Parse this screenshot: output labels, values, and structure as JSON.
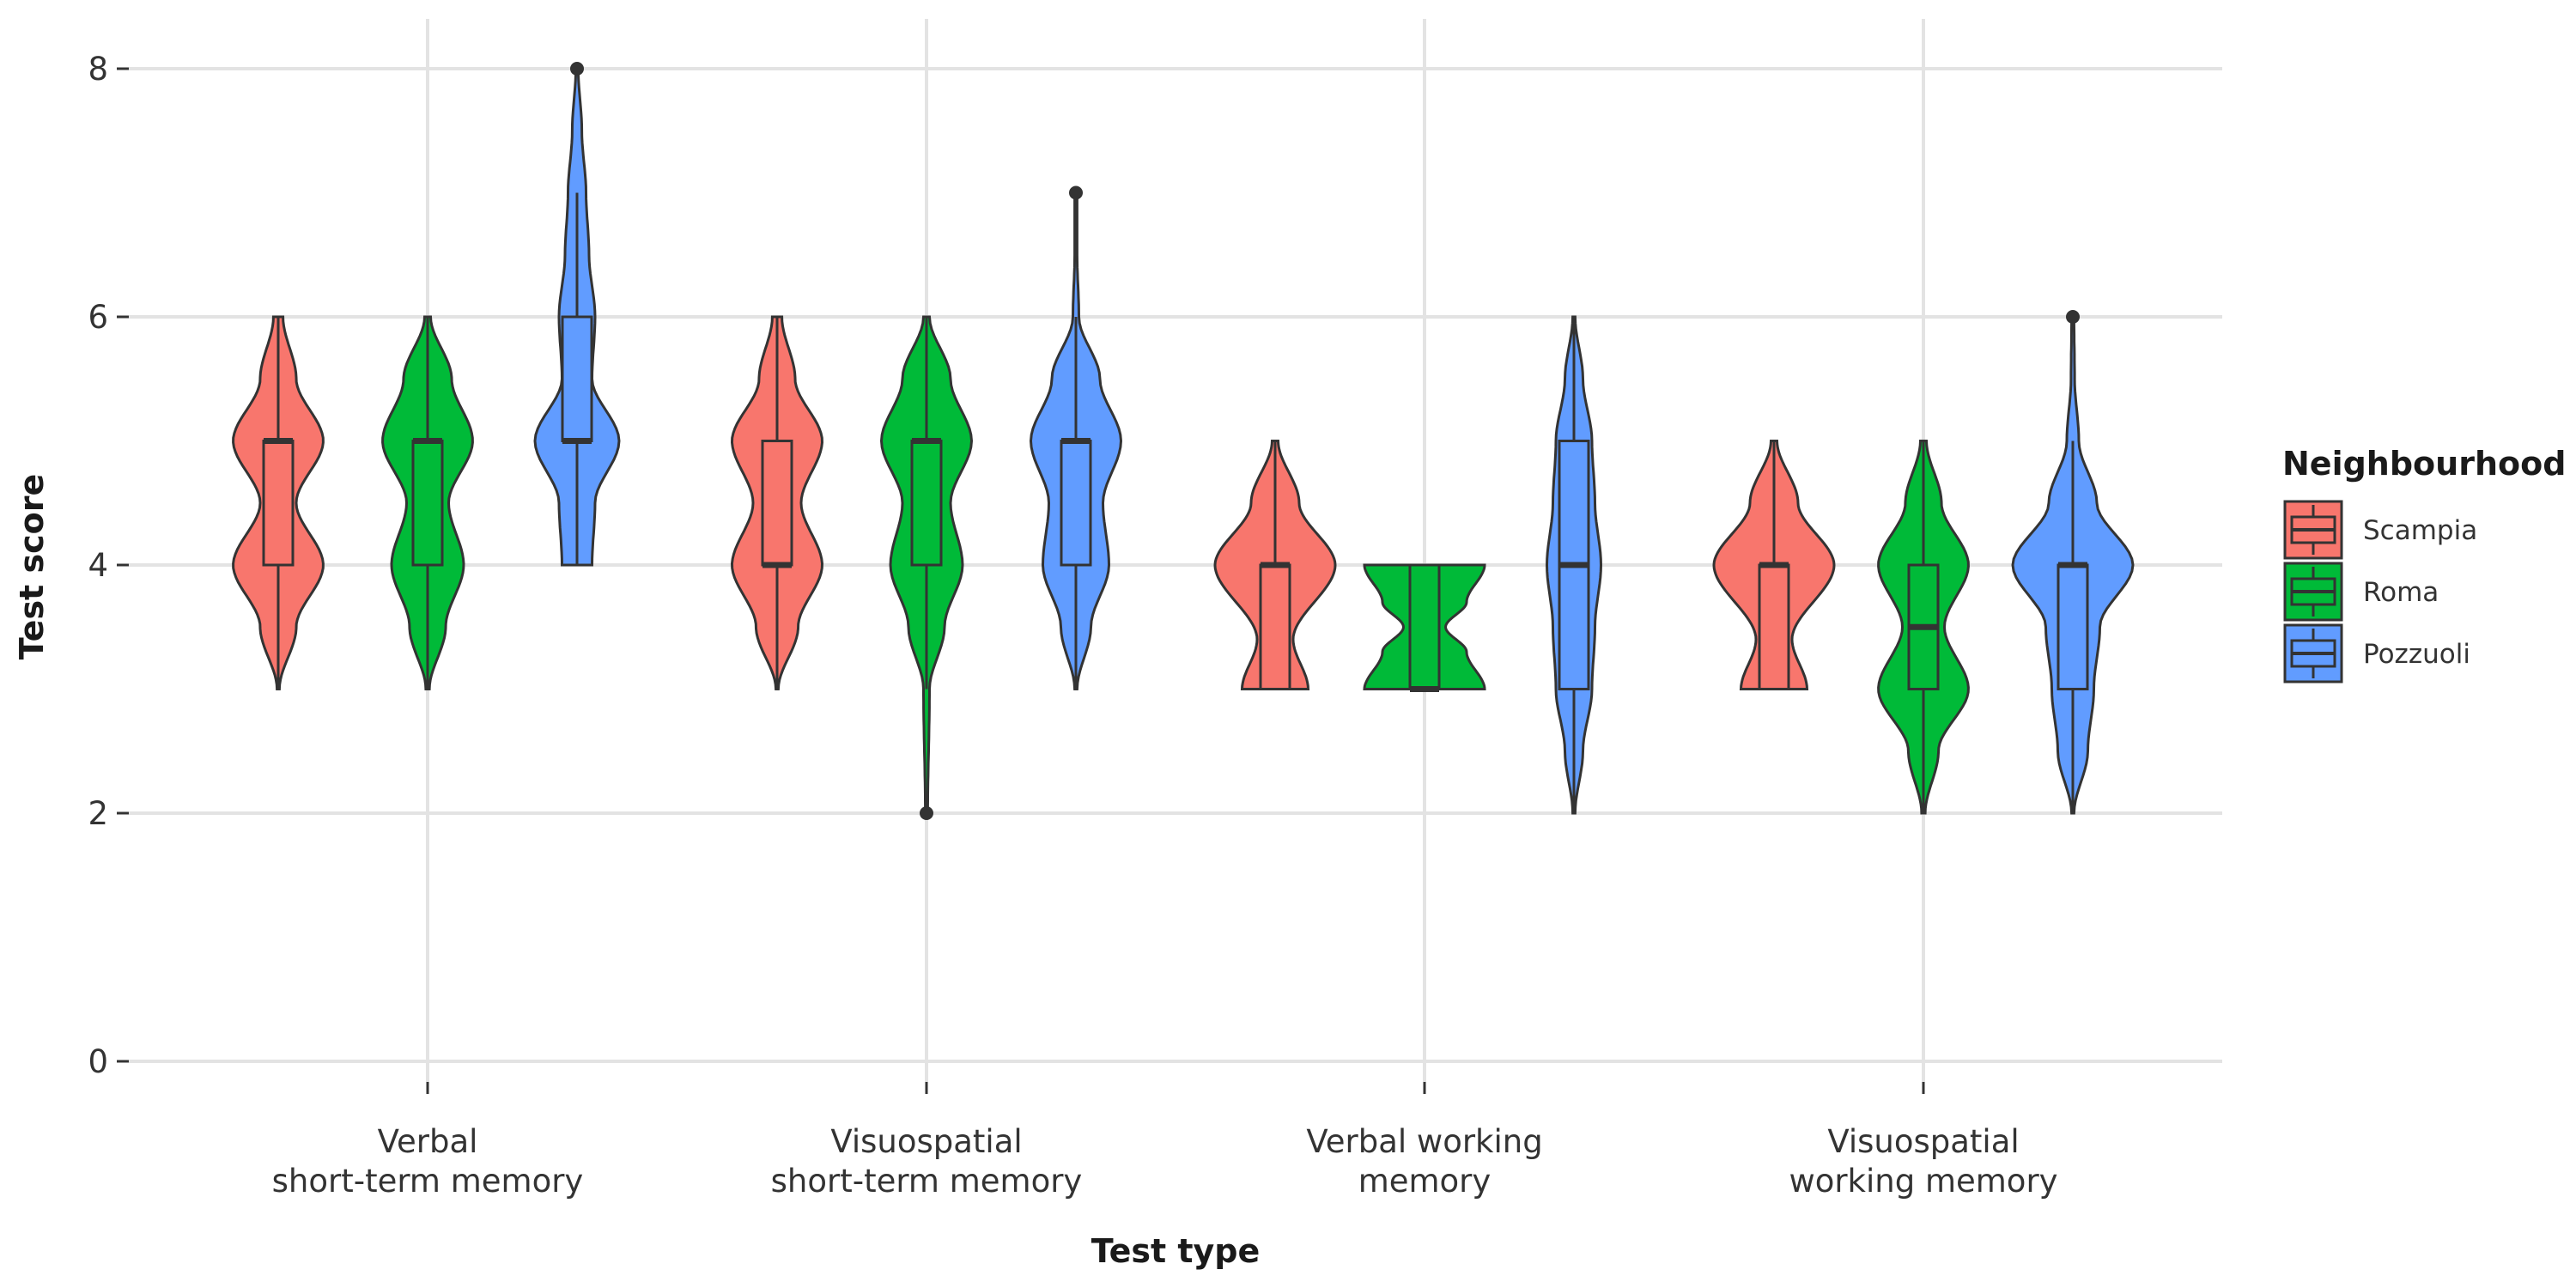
{
  "chart_data": {
    "type": "violin",
    "xlabel": "Test type",
    "ylabel": "Test score",
    "ylim": [
      0,
      8.4
    ],
    "yticks": [
      0,
      2,
      4,
      6,
      8
    ],
    "grid": true,
    "legend": {
      "title": "Neighbourhood",
      "position": "right"
    },
    "categories": [
      [
        "Verbal",
        "short-term memory"
      ],
      [
        "Visuospatial",
        "short-term memory"
      ],
      [
        "Verbal working",
        "memory"
      ],
      [
        "Visuospatial",
        "working memory"
      ]
    ],
    "series": [
      {
        "name": "Scampia",
        "color": "#F8766D",
        "groups": [
          {
            "min": 3,
            "q1": 4,
            "median": 5,
            "q3": 5,
            "max": 6,
            "outliers": [],
            "density": [
              [
                3,
                0.02
              ],
              [
                3.5,
                0.3
              ],
              [
                4,
                0.75
              ],
              [
                4.5,
                0.3
              ],
              [
                5,
                0.75
              ],
              [
                5.5,
                0.3
              ],
              [
                6,
                0.08
              ]
            ]
          },
          {
            "min": 3,
            "q1": 4,
            "median": 4,
            "q3": 5,
            "max": 6,
            "outliers": [],
            "density": [
              [
                3,
                0.02
              ],
              [
                3.5,
                0.35
              ],
              [
                4,
                0.75
              ],
              [
                4.5,
                0.4
              ],
              [
                5,
                0.75
              ],
              [
                5.5,
                0.3
              ],
              [
                6,
                0.08
              ]
            ]
          },
          {
            "min": 3,
            "q1": 3,
            "median": 4,
            "q3": 4,
            "max": 5,
            "outliers": [],
            "density": [
              [
                3,
                0.55
              ],
              [
                3.4,
                0.3
              ],
              [
                4,
                1.0
              ],
              [
                4.5,
                0.4
              ],
              [
                5,
                0.05
              ]
            ]
          },
          {
            "min": 3,
            "q1": 3,
            "median": 4,
            "q3": 4,
            "max": 5,
            "outliers": [],
            "density": [
              [
                3,
                0.55
              ],
              [
                3.4,
                0.3
              ],
              [
                4,
                1.0
              ],
              [
                4.5,
                0.4
              ],
              [
                5,
                0.05
              ]
            ]
          }
        ]
      },
      {
        "name": "Roma",
        "color": "#00BA38",
        "groups": [
          {
            "min": 3,
            "q1": 4,
            "median": 5,
            "q3": 5,
            "max": 6,
            "outliers": [],
            "density": [
              [
                3,
                0.03
              ],
              [
                3.5,
                0.3
              ],
              [
                4,
                0.6
              ],
              [
                4.5,
                0.35
              ],
              [
                5,
                0.75
              ],
              [
                5.5,
                0.4
              ],
              [
                6,
                0.05
              ]
            ]
          },
          {
            "min": 3,
            "q1": 4,
            "median": 5,
            "q3": 5,
            "max": 6,
            "outliers": [
              2
            ],
            "density": [
              [
                2,
                0.02
              ],
              [
                3,
                0.05
              ],
              [
                3.5,
                0.3
              ],
              [
                4,
                0.6
              ],
              [
                4.5,
                0.4
              ],
              [
                5,
                0.75
              ],
              [
                5.5,
                0.4
              ],
              [
                6,
                0.05
              ]
            ]
          },
          {
            "min": 3,
            "q1": 3,
            "median": 3,
            "q3": 4,
            "max": 4,
            "outliers": [],
            "density": [
              [
                3,
                1.0
              ],
              [
                3.3,
                0.7
              ],
              [
                3.5,
                0.35
              ],
              [
                3.7,
                0.7
              ],
              [
                4,
                1.0
              ]
            ]
          },
          {
            "min": 2,
            "q1": 3,
            "median": 3.5,
            "q3": 4,
            "max": 5,
            "outliers": [],
            "density": [
              [
                2,
                0.03
              ],
              [
                2.5,
                0.25
              ],
              [
                3,
                0.75
              ],
              [
                3.5,
                0.35
              ],
              [
                4,
                0.75
              ],
              [
                4.5,
                0.3
              ],
              [
                5,
                0.05
              ]
            ]
          }
        ]
      },
      {
        "name": "Pozzuoli",
        "color": "#619CFF",
        "groups": [
          {
            "min": 4,
            "q1": 5,
            "median": 5,
            "q3": 6,
            "max": 7,
            "outliers": [
              8
            ],
            "density": [
              [
                4,
                0.25
              ],
              [
                4.5,
                0.3
              ],
              [
                5,
                0.7
              ],
              [
                5.5,
                0.25
              ],
              [
                6,
                0.3
              ],
              [
                6.5,
                0.2
              ],
              [
                7,
                0.15
              ],
              [
                7.5,
                0.08
              ],
              [
                8,
                0.02
              ]
            ]
          },
          {
            "min": 3,
            "q1": 4,
            "median": 5,
            "q3": 5,
            "max": 6,
            "outliers": [
              7
            ],
            "density": [
              [
                3,
                0.02
              ],
              [
                3.5,
                0.25
              ],
              [
                4,
                0.55
              ],
              [
                4.5,
                0.45
              ],
              [
                5,
                0.75
              ],
              [
                5.5,
                0.4
              ],
              [
                6,
                0.05
              ],
              [
                6.5,
                0.02
              ],
              [
                7,
                0.02
              ]
            ]
          },
          {
            "min": 2,
            "q1": 3,
            "median": 4,
            "q3": 5,
            "max": 6,
            "outliers": [],
            "density": [
              [
                2,
                0.02
              ],
              [
                2.5,
                0.15
              ],
              [
                3,
                0.3
              ],
              [
                3.5,
                0.35
              ],
              [
                4,
                0.45
              ],
              [
                4.5,
                0.35
              ],
              [
                5,
                0.3
              ],
              [
                5.5,
                0.15
              ],
              [
                6,
                0.02
              ]
            ]
          },
          {
            "min": 2,
            "q1": 3,
            "median": 4,
            "q3": 4,
            "max": 5,
            "outliers": [
              6
            ],
            "density": [
              [
                2,
                0.02
              ],
              [
                2.5,
                0.25
              ],
              [
                3,
                0.35
              ],
              [
                3.5,
                0.45
              ],
              [
                4,
                1.0
              ],
              [
                4.5,
                0.4
              ],
              [
                5,
                0.1
              ],
              [
                5.5,
                0.03
              ],
              [
                6,
                0.02
              ]
            ]
          }
        ]
      }
    ]
  }
}
